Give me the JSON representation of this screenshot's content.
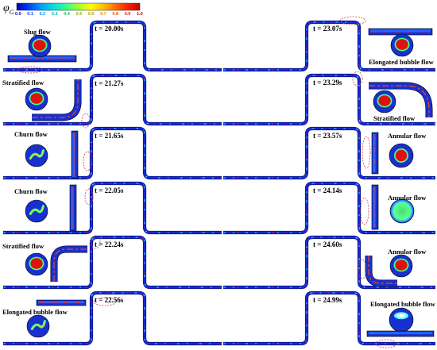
{
  "colorbar": {
    "symbol": "φ",
    "subscript": "G",
    "ticks": [
      "0.0",
      "0.1",
      "0.2",
      "0.3",
      "0.4",
      "0.5",
      "0.6",
      "0.7",
      "0.8",
      "0.9",
      "1.0"
    ],
    "colors": [
      "#0000b8",
      "#0040ff",
      "#00a0ff",
      "#00e0e0",
      "#30ff90",
      "#a0ff30",
      "#ffff00",
      "#ffc000",
      "#ff7000",
      "#ff2000",
      "#c00000"
    ]
  },
  "colors": {
    "pipe_base": "#1428d8",
    "pipe_edge": "#0a0a60",
    "pipe_bubble": "#30e0ff",
    "pipe_gas": "#e02020",
    "circle_liquid": "#1830d0",
    "circle_gas": "#e01010",
    "circle_mid": "#40ff80",
    "marker": "#d04040"
  },
  "left_panels": [
    {
      "flow": "Slug flow",
      "time": "t = 20.00s"
    },
    {
      "flow": "Stratified flow",
      "time": "t = 21.27s"
    },
    {
      "flow": "Churn flow",
      "time": "t = 21.65s"
    },
    {
      "flow": "Churn flow",
      "time": "t = 22.05s"
    },
    {
      "flow": "Stratified flow",
      "time": "t = 22.24s"
    },
    {
      "flow": "Elongated bubble flow",
      "time": "t = 22.56s"
    }
  ],
  "right_panels": [
    {
      "flow": "Elongated bubble flow",
      "time": "t = 23.07s"
    },
    {
      "flow": "Stratified flow",
      "time": "t = 23.29s"
    },
    {
      "flow": "Annular flow",
      "time": "t = 23.57s"
    },
    {
      "flow": "Annular flow",
      "time": "t = 24.14s"
    },
    {
      "flow": "Annular flow",
      "time": "t = 24.60s"
    },
    {
      "flow": "Elongated bubble flow",
      "time": "t = 24.99s"
    }
  ]
}
